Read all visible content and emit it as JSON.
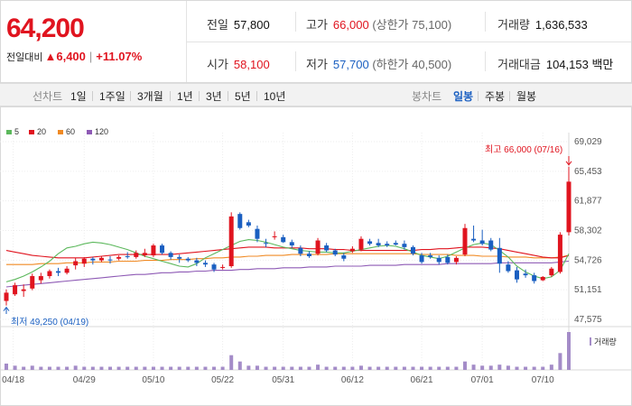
{
  "summary": {
    "current_price": "64,200",
    "change_label": "전일대비",
    "change_amount": "▲6,400",
    "change_rate": "+11.07%"
  },
  "info": {
    "prev_close_label": "전일",
    "prev_close": "57,800",
    "high_label": "고가",
    "high": "66,000",
    "upper_limit": "(상한가 75,100)",
    "volume_label": "거래량",
    "volume": "1,636,533",
    "open_label": "시가",
    "open": "58,100",
    "low_label": "저가",
    "low": "57,700",
    "lower_limit": "(하한가 40,500)",
    "amount_label": "거래대금",
    "amount": "104,153 백만"
  },
  "nav": {
    "line_label": "선차트",
    "line_periods": [
      "1일",
      "1주일",
      "3개월",
      "1년",
      "3년",
      "5년",
      "10년"
    ],
    "candle_label": "봉차트",
    "candle_periods": [
      "일봉",
      "주봉",
      "월봉"
    ],
    "active_candle": "일봉"
  },
  "colors": {
    "up": "#e0141f",
    "down": "#1a5fc1",
    "ma5": "#5cb85c",
    "ma20": "#e0141f",
    "ma60": "#f08a24",
    "ma120": "#8e5ab5",
    "volume": "#a48cc8"
  },
  "chart_data": {
    "type": "candlestick",
    "legend": [
      "5",
      "20",
      "60",
      "120"
    ],
    "y_ticks": [
      "69,029",
      "65,453",
      "61,877",
      "58,302",
      "54,726",
      "51,151",
      "47,575"
    ],
    "ylim": [
      47575,
      69029
    ],
    "x_ticks": [
      "04/18",
      "04/29",
      "05/10",
      "05/22",
      "05/31",
      "06/12",
      "06/21",
      "07/01",
      "07/10"
    ],
    "max_annotation": "최고 66,000 (07/16)",
    "min_annotation": "최저 49,250 (04/19)",
    "volume_label": "거래량",
    "candles": [
      {
        "o": 49800,
        "h": 51200,
        "l": 49250,
        "c": 50800
      },
      {
        "o": 50600,
        "h": 52000,
        "l": 50400,
        "c": 51700
      },
      {
        "o": 51000,
        "h": 51800,
        "l": 50300,
        "c": 51200
      },
      {
        "o": 51300,
        "h": 53100,
        "l": 51100,
        "c": 52800
      },
      {
        "o": 52300,
        "h": 53200,
        "l": 51900,
        "c": 52800
      },
      {
        "o": 52800,
        "h": 53600,
        "l": 52500,
        "c": 53400
      },
      {
        "o": 53400,
        "h": 53800,
        "l": 52800,
        "c": 53200
      },
      {
        "o": 53200,
        "h": 54000,
        "l": 53000,
        "c": 53700
      },
      {
        "o": 54100,
        "h": 55000,
        "l": 53600,
        "c": 54600
      },
      {
        "o": 54300,
        "h": 55100,
        "l": 53900,
        "c": 54900
      },
      {
        "o": 54900,
        "h": 55100,
        "l": 54200,
        "c": 54700
      },
      {
        "o": 54700,
        "h": 55200,
        "l": 54500,
        "c": 55000
      },
      {
        "o": 54800,
        "h": 55200,
        "l": 54300,
        "c": 54700
      },
      {
        "o": 54900,
        "h": 55300,
        "l": 54700,
        "c": 55100
      },
      {
        "o": 55200,
        "h": 55700,
        "l": 54900,
        "c": 55100
      },
      {
        "o": 55100,
        "h": 55900,
        "l": 54900,
        "c": 55600
      },
      {
        "o": 55300,
        "h": 56100,
        "l": 55100,
        "c": 55600
      },
      {
        "o": 55300,
        "h": 56700,
        "l": 55100,
        "c": 56500
      },
      {
        "o": 56500,
        "h": 56700,
        "l": 55400,
        "c": 55600
      },
      {
        "o": 55600,
        "h": 55800,
        "l": 54800,
        "c": 55100
      },
      {
        "o": 55100,
        "h": 55400,
        "l": 54400,
        "c": 54900
      },
      {
        "o": 54900,
        "h": 55100,
        "l": 54500,
        "c": 54700
      },
      {
        "o": 54700,
        "h": 55000,
        "l": 54000,
        "c": 54400
      },
      {
        "o": 54400,
        "h": 54700,
        "l": 53900,
        "c": 54200
      },
      {
        "o": 54200,
        "h": 54400,
        "l": 53300,
        "c": 53600
      },
      {
        "o": 53900,
        "h": 54200,
        "l": 53600,
        "c": 53900
      },
      {
        "o": 54000,
        "h": 60500,
        "l": 53800,
        "c": 60000
      },
      {
        "o": 60300,
        "h": 60500,
        "l": 58400,
        "c": 58600
      },
      {
        "o": 59300,
        "h": 59600,
        "l": 58700,
        "c": 58900
      },
      {
        "o": 58500,
        "h": 58900,
        "l": 56900,
        "c": 57300
      },
      {
        "o": 56800,
        "h": 57300,
        "l": 56300,
        "c": 56700
      },
      {
        "o": 57500,
        "h": 58200,
        "l": 57200,
        "c": 57600
      },
      {
        "o": 57500,
        "h": 57800,
        "l": 56800,
        "c": 56900
      },
      {
        "o": 56900,
        "h": 57200,
        "l": 56200,
        "c": 56500
      },
      {
        "o": 56200,
        "h": 56500,
        "l": 55200,
        "c": 55500
      },
      {
        "o": 55500,
        "h": 55800,
        "l": 55000,
        "c": 55200
      },
      {
        "o": 55500,
        "h": 57400,
        "l": 55300,
        "c": 57100
      },
      {
        "o": 56500,
        "h": 56800,
        "l": 55700,
        "c": 55900
      },
      {
        "o": 55900,
        "h": 56100,
        "l": 55200,
        "c": 55400
      },
      {
        "o": 55300,
        "h": 55600,
        "l": 54600,
        "c": 54900
      },
      {
        "o": 55800,
        "h": 56400,
        "l": 55600,
        "c": 56100
      },
      {
        "o": 56000,
        "h": 57600,
        "l": 55800,
        "c": 57300
      },
      {
        "o": 57000,
        "h": 57300,
        "l": 56500,
        "c": 56700
      },
      {
        "o": 56800,
        "h": 57300,
        "l": 56300,
        "c": 56500
      },
      {
        "o": 56700,
        "h": 57000,
        "l": 56300,
        "c": 56500
      },
      {
        "o": 56800,
        "h": 57100,
        "l": 56500,
        "c": 56600
      },
      {
        "o": 56700,
        "h": 57100,
        "l": 56000,
        "c": 56300
      },
      {
        "o": 56300,
        "h": 56500,
        "l": 55300,
        "c": 55500
      },
      {
        "o": 55300,
        "h": 55600,
        "l": 54300,
        "c": 54500
      },
      {
        "o": 55300,
        "h": 55600,
        "l": 54900,
        "c": 55100
      },
      {
        "o": 55000,
        "h": 55300,
        "l": 54200,
        "c": 54500
      },
      {
        "o": 55100,
        "h": 55400,
        "l": 54200,
        "c": 54400
      },
      {
        "o": 54500,
        "h": 55200,
        "l": 54200,
        "c": 55000
      },
      {
        "o": 55400,
        "h": 59100,
        "l": 55200,
        "c": 58600
      },
      {
        "o": 57300,
        "h": 58900,
        "l": 56900,
        "c": 57100
      },
      {
        "o": 57100,
        "h": 58400,
        "l": 56500,
        "c": 56700
      },
      {
        "o": 57100,
        "h": 57400,
        "l": 55800,
        "c": 56000
      },
      {
        "o": 56200,
        "h": 57400,
        "l": 53200,
        "c": 54300
      },
      {
        "o": 54200,
        "h": 54600,
        "l": 53200,
        "c": 53400
      },
      {
        "o": 53500,
        "h": 53900,
        "l": 52000,
        "c": 52400
      },
      {
        "o": 53100,
        "h": 53600,
        "l": 52600,
        "c": 52900
      },
      {
        "o": 52900,
        "h": 53200,
        "l": 51900,
        "c": 52200
      },
      {
        "o": 52300,
        "h": 52800,
        "l": 52200,
        "c": 52700
      },
      {
        "o": 52900,
        "h": 53900,
        "l": 52700,
        "c": 53700
      },
      {
        "o": 53300,
        "h": 58100,
        "l": 53100,
        "c": 57800
      },
      {
        "o": 58100,
        "h": 66000,
        "l": 57700,
        "c": 64200
      }
    ],
    "volume": [
      6,
      4,
      3,
      4,
      3,
      3,
      3,
      3,
      4,
      3,
      3,
      3,
      3,
      3,
      3,
      3,
      3,
      3,
      3,
      3,
      3,
      3,
      3,
      3,
      3,
      3,
      14,
      8,
      4,
      4,
      3,
      3,
      3,
      3,
      3,
      3,
      5,
      3,
      3,
      3,
      3,
      4,
      3,
      3,
      3,
      3,
      3,
      3,
      3,
      3,
      3,
      3,
      3,
      8,
      5,
      4,
      4,
      5,
      4,
      3,
      3,
      3,
      3,
      5,
      16,
      36
    ],
    "ma5": [
      52100,
      52400,
      52800,
      53300,
      53900,
      54600,
      55500,
      56200,
      56400,
      56700,
      56900,
      56800,
      56600,
      56300,
      56000,
      55600,
      55200,
      54900,
      54600,
      54300,
      54000,
      53900,
      54300,
      55000,
      55500,
      56000,
      56500,
      57000,
      57200,
      57100,
      56900,
      56600,
      56300,
      56100,
      55900,
      55800,
      55700,
      55700,
      55600,
      55600,
      55800,
      56000,
      56200,
      56400,
      56500,
      56400,
      56100,
      55700,
      55300,
      55100,
      54900,
      55200,
      55700,
      56200,
      56600,
      56800,
      56600,
      55900,
      55100,
      54000,
      53300,
      52800,
      52500,
      52700,
      53500,
      55500
    ],
    "ma20": [
      55900,
      55700,
      55500,
      55300,
      55200,
      55100,
      55000,
      55000,
      55000,
      55000,
      55100,
      55200,
      55300,
      55400,
      55400,
      55400,
      55400,
      55400,
      55400,
      55400,
      55500,
      55600,
      55700,
      55800,
      55900,
      56000,
      56100,
      56200,
      56300,
      56300,
      56300,
      56200,
      56200,
      56200,
      56200,
      56100,
      56100,
      56100,
      56000,
      56000,
      55900,
      55900,
      55900,
      55900,
      55900,
      55900,
      55900,
      55900,
      56000,
      56000,
      56100,
      56100,
      56200,
      56300,
      56300,
      56300,
      56200,
      56100,
      55900,
      55700,
      55500,
      55300,
      55100,
      55000,
      55000,
      55300
    ],
    "ma60": [
      54200,
      54200,
      54200,
      54200,
      54300,
      54300,
      54300,
      54400,
      54400,
      54400,
      54500,
      54500,
      54500,
      54600,
      54600,
      54600,
      54700,
      54700,
      54700,
      54800,
      54800,
      54800,
      54900,
      54900,
      55000,
      55000,
      55100,
      55100,
      55200,
      55200,
      55300,
      55300,
      55300,
      55400,
      55400,
      55400,
      55400,
      55400,
      55500,
      55500,
      55500,
      55500,
      55500,
      55500,
      55500,
      55500,
      55500,
      55500,
      55400,
      55400,
      55400,
      55400,
      55300,
      55300,
      55300,
      55200,
      55200,
      55200,
      55100,
      55100,
      55100,
      55000,
      55000,
      55000,
      55100,
      55300
    ],
    "ma120": [
      51500,
      51600,
      51700,
      51800,
      51900,
      52000,
      52100,
      52200,
      52300,
      52400,
      52500,
      52600,
      52700,
      52800,
      52900,
      53000,
      53000,
      53100,
      53200,
      53200,
      53300,
      53300,
      53400,
      53400,
      53500,
      53500,
      53500,
      53600,
      53600,
      53700,
      53700,
      53700,
      53800,
      53800,
      53800,
      53900,
      53900,
      53900,
      54000,
      54000,
      54000,
      54000,
      54100,
      54100,
      54100,
      54100,
      54200,
      54200,
      54200,
      54200,
      54200,
      54300,
      54300,
      54300,
      54300,
      54300,
      54300,
      54400,
      54400,
      54400,
      54400,
      54400,
      54400,
      54400,
      54500,
      54600
    ]
  }
}
